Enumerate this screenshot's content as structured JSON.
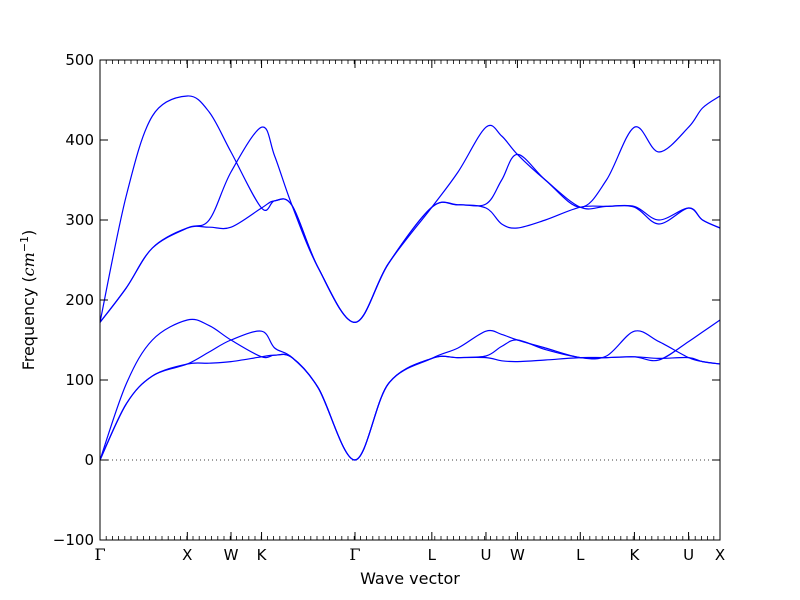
{
  "chart_data": {
    "type": "line",
    "title": "",
    "xlabel": "Wave vector",
    "ylabel_prefix": "Frequency (",
    "ylabel_math_base": "cm",
    "ylabel_math_exp": "−1",
    "ylabel_suffix": ")",
    "ylim": [
      -100,
      500
    ],
    "yticks": [
      -100,
      0,
      100,
      200,
      300,
      400,
      500
    ],
    "xticks": [
      {
        "label": "Γ",
        "x": 0
      },
      {
        "label": "X",
        "x": 1.0
      },
      {
        "label": "W",
        "x": 1.5
      },
      {
        "label": "K",
        "x": 1.85
      },
      {
        "label": "Γ",
        "x": 2.92
      },
      {
        "label": "L",
        "x": 3.8
      },
      {
        "label": "U",
        "x": 4.42
      },
      {
        "label": "W",
        "x": 4.78
      },
      {
        "label": "L",
        "x": 5.5
      },
      {
        "label": "K",
        "x": 6.12
      },
      {
        "label": "U",
        "x": 6.74
      },
      {
        "label": "X",
        "x": 7.1
      }
    ],
    "xlim": [
      0,
      7.1
    ],
    "zero_line": {
      "y": 0,
      "style": "dotted"
    },
    "color": "#0000ff",
    "series": [
      {
        "x": [
          0,
          0.3,
          0.6,
          1.0,
          1.25,
          1.5,
          1.85,
          2.0,
          2.2,
          2.5,
          2.92,
          3.3,
          3.8,
          4.1,
          4.42,
          4.6,
          4.78,
          5.1,
          5.5,
          5.8,
          6.12,
          6.4,
          6.74,
          6.9,
          7.1
        ],
        "values": [
          0,
          70,
          105,
          120,
          121,
          123,
          129,
          131,
          128,
          90,
          0,
          95,
          127,
          128,
          128,
          124,
          123,
          125,
          128,
          128,
          129,
          127,
          128,
          123,
          120
        ]
      },
      {
        "x": [
          0,
          0.3,
          0.6,
          1.0,
          1.25,
          1.5,
          1.85,
          2.0,
          2.2,
          2.5,
          2.92,
          3.3,
          3.8,
          4.1,
          4.42,
          4.6,
          4.78,
          5.1,
          5.5,
          5.8,
          6.12,
          6.4,
          6.74,
          6.9,
          7.1
        ],
        "values": [
          0,
          70,
          105,
          120,
          135,
          150,
          161,
          140,
          128,
          90,
          0,
          95,
          127,
          140,
          161,
          157,
          150,
          140,
          128,
          130,
          161,
          148,
          128,
          123,
          120
        ]
      },
      {
        "x": [
          0,
          0.3,
          0.6,
          1.0,
          1.25,
          1.5,
          1.85,
          2.0,
          2.2,
          2.5,
          2.92,
          3.3,
          3.8,
          4.1,
          4.42,
          4.6,
          4.78,
          5.1,
          5.5,
          5.8,
          6.12,
          6.4,
          6.74,
          6.9,
          7.1
        ],
        "values": [
          0,
          95,
          150,
          175,
          168,
          150,
          129,
          131,
          128,
          90,
          0,
          95,
          127,
          128,
          130,
          142,
          150,
          138,
          128,
          128,
          129,
          125,
          148,
          160,
          175
        ]
      },
      {
        "x": [
          0,
          0.3,
          0.6,
          1.0,
          1.25,
          1.5,
          1.85,
          2.0,
          2.2,
          2.5,
          2.92,
          3.3,
          3.8,
          4.1,
          4.42,
          4.6,
          4.78,
          5.1,
          5.5,
          5.8,
          6.12,
          6.4,
          6.74,
          6.9,
          7.1
        ],
        "values": [
          172,
          215,
          265,
          290,
          291,
          291,
          315,
          324,
          318,
          240,
          172,
          245,
          316,
          319,
          315,
          295,
          290,
          300,
          316,
          317,
          317,
          300,
          315,
          300,
          290
        ]
      },
      {
        "x": [
          0,
          0.3,
          0.6,
          1.0,
          1.25,
          1.5,
          1.85,
          2.0,
          2.2,
          2.5,
          2.92,
          3.3,
          3.8,
          4.1,
          4.42,
          4.6,
          4.78,
          5.1,
          5.5,
          5.8,
          6.12,
          6.4,
          6.74,
          6.9,
          7.1
        ],
        "values": [
          172,
          215,
          265,
          290,
          300,
          360,
          416,
          380,
          318,
          240,
          172,
          245,
          316,
          360,
          416,
          405,
          382,
          350,
          316,
          350,
          416,
          385,
          416,
          440,
          455
        ]
      },
      {
        "x": [
          0,
          0.3,
          0.6,
          1.0,
          1.25,
          1.5,
          1.85,
          2.0,
          2.2,
          2.5,
          2.92,
          3.3,
          3.8,
          4.1,
          4.42,
          4.6,
          4.78,
          5.1,
          5.5,
          5.8,
          6.12,
          6.4,
          6.74,
          6.9,
          7.1
        ],
        "values": [
          172,
          330,
          430,
          455,
          435,
          385,
          315,
          324,
          318,
          240,
          172,
          245,
          316,
          319,
          320,
          350,
          382,
          350,
          316,
          317,
          316,
          295,
          315,
          300,
          290
        ]
      }
    ]
  }
}
